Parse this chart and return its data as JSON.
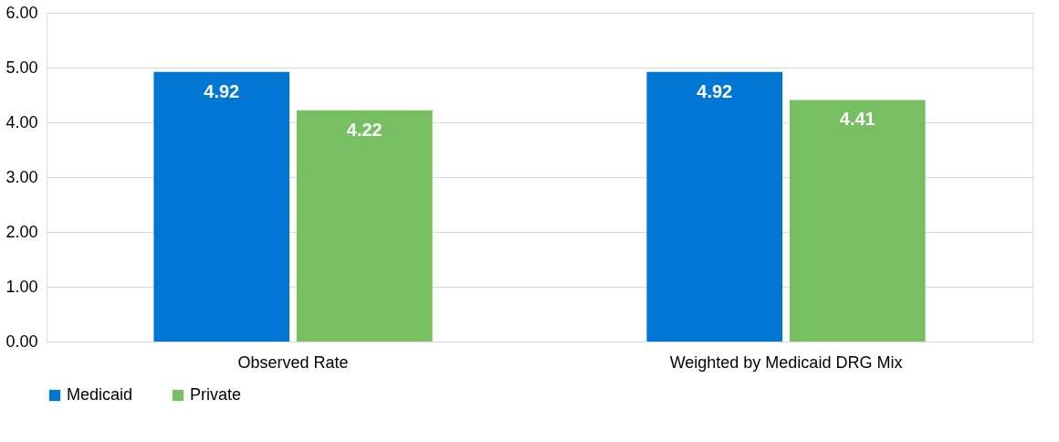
{
  "chart_data": {
    "type": "bar",
    "categories": [
      "Observed Rate",
      "Weighted by Medicaid DRG Mix"
    ],
    "series": [
      {
        "name": "Medicaid",
        "color": "#0077d4",
        "values": [
          4.92,
          4.92
        ]
      },
      {
        "name": "Private",
        "color": "#77c062",
        "values": [
          4.22,
          4.41
        ]
      }
    ],
    "ylim": [
      0,
      6
    ],
    "yticks": [
      {
        "value": 0,
        "label": "0.00"
      },
      {
        "value": 1,
        "label": "1.00"
      },
      {
        "value": 2,
        "label": "2.00"
      },
      {
        "value": 3,
        "label": "3.00"
      },
      {
        "value": 4,
        "label": "4.00"
      },
      {
        "value": 5,
        "label": "5.00"
      },
      {
        "value": 6,
        "label": "6.00"
      }
    ],
    "grid": "y",
    "legend": "bottom",
    "data_labels": true
  }
}
